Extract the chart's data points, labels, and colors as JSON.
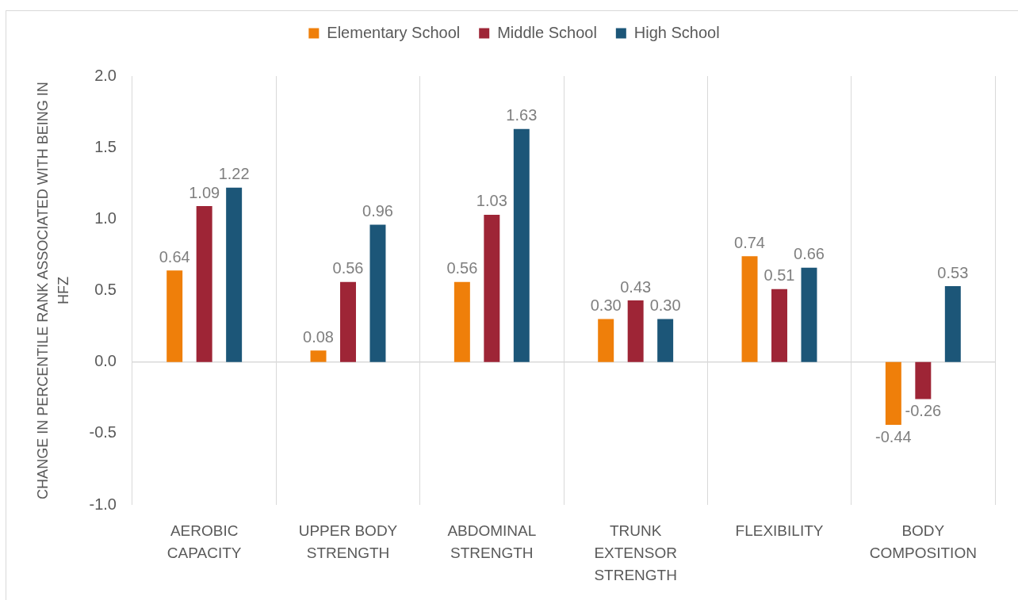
{
  "chart_data": {
    "type": "bar",
    "categories": [
      "AEROBIC CAPACITY",
      "UPPER BODY STRENGTH",
      "ABDOMINAL STRENGTH",
      "TRUNK EXTENSOR STRENGTH",
      "FLEXIBILITY",
      "BODY COMPOSITION"
    ],
    "series": [
      {
        "name": "Elementary School",
        "color": "#ef7f0a",
        "values": [
          0.64,
          0.08,
          0.56,
          0.3,
          0.74,
          -0.44
        ],
        "value_labels": [
          "0.64",
          "0.08",
          "0.56",
          "0.30",
          "0.74",
          "-0.44"
        ]
      },
      {
        "name": "Middle School",
        "color": "#9e2536",
        "values": [
          1.09,
          0.56,
          1.03,
          0.43,
          0.51,
          -0.26
        ],
        "value_labels": [
          "1.09",
          "0.56",
          "1.03",
          "0.43",
          "0.51",
          "-0.26"
        ]
      },
      {
        "name": "High School",
        "color": "#1c5678",
        "values": [
          1.22,
          0.96,
          1.63,
          0.3,
          0.66,
          0.53
        ],
        "value_labels": [
          "1.22",
          "0.96",
          "1.63",
          "0.30",
          "0.66",
          "0.53"
        ]
      }
    ],
    "ylabel": "CHANGE IN PERCENTILE RANK ASSOCIATED WITH BEING IN HFZ",
    "ylim": [
      -1,
      2
    ],
    "yticks": [
      {
        "value": -1,
        "label": "-1.0"
      },
      -0.5,
      {
        "value": 0,
        "label": "0.0"
      },
      0.5,
      {
        "value": 1,
        "label": "1.0"
      },
      1.5,
      {
        "value": 2,
        "label": "2.0"
      }
    ],
    "ref_lines": [
      {
        "axis": "y",
        "value": 0,
        "color": "#d9d9d9"
      }
    ],
    "grid": "x",
    "legend": "top"
  }
}
